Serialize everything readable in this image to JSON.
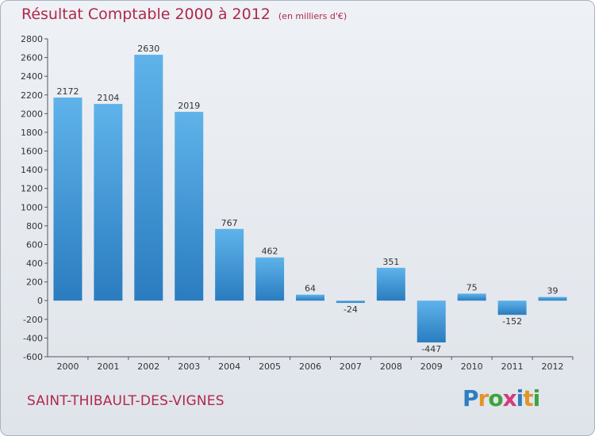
{
  "title": {
    "main": "Résultat Comptable 2000 à 2012",
    "unit": "(en milliers d'€)"
  },
  "commune": "SAINT-THIBAULT-DES-VIGNES",
  "logo": {
    "letters": [
      "P",
      "r",
      "o",
      "x",
      "i",
      "t",
      "i"
    ],
    "colors": [
      "#2f7dc2",
      "#e0952a",
      "#3ea33e",
      "#d23b7c",
      "#2f7dc2",
      "#e0952a",
      "#3ea33e"
    ]
  },
  "colors": {
    "bar_top": "#5fb3ea",
    "bar_bottom": "#2a7cbf",
    "title": "#b0284a",
    "text": "#333333"
  },
  "chart_data": {
    "type": "bar",
    "categories": [
      "2000",
      "2001",
      "2002",
      "2003",
      "2004",
      "2005",
      "2006",
      "2007",
      "2008",
      "2009",
      "2010",
      "2011",
      "2012"
    ],
    "values": [
      2172,
      2104,
      2630,
      2019,
      767,
      462,
      64,
      -24,
      351,
      -447,
      75,
      -152,
      39
    ],
    "value_labels": [
      "2172",
      "2104",
      "2630",
      "2019",
      "767",
      "462",
      "64",
      "-24",
      "351",
      "-447",
      "75",
      "-152",
      "39"
    ],
    "ylim": [
      -600,
      2800
    ],
    "yticks": [
      -600,
      -400,
      -200,
      0,
      200,
      400,
      600,
      800,
      1000,
      1200,
      1400,
      1600,
      1800,
      2000,
      2200,
      2400,
      2600,
      2800
    ],
    "title": "Résultat Comptable 2000 à 2012",
    "xlabel": "",
    "ylabel": "",
    "grid": false,
    "legend": "none"
  }
}
